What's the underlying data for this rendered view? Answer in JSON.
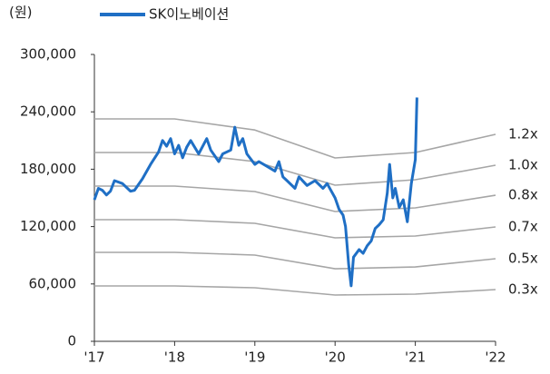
{
  "chart_data": {
    "type": "line",
    "unit_label": "(원)",
    "xlim": [
      2017,
      2022
    ],
    "xticks": [
      {
        "value": 2017,
        "label": "'17"
      },
      {
        "value": 2018,
        "label": "'18"
      },
      {
        "value": 2019,
        "label": "'19"
      },
      {
        "value": 2020,
        "label": "'20"
      },
      {
        "value": 2021,
        "label": "'21"
      },
      {
        "value": 2022,
        "label": "'22"
      }
    ],
    "ylim": [
      0,
      300000
    ],
    "yticks": [
      0,
      {
        "value": 60000,
        "label": "60,000"
      },
      {
        "value": 120000,
        "label": "120,000"
      },
      {
        "value": 180000,
        "label": "180,000"
      },
      {
        "value": 240000,
        "label": "240,000"
      },
      {
        "value": 300000,
        "label": "300,000"
      }
    ],
    "series": [
      {
        "name": "SK이노베이션",
        "color": "#1f6fc5",
        "legend": true,
        "x": [
          2017.0,
          2017.05,
          2017.1,
          2017.15,
          2017.2,
          2017.25,
          2017.35,
          2017.45,
          2017.5,
          2017.6,
          2017.7,
          2017.8,
          2017.85,
          2017.9,
          2017.95,
          2018.0,
          2018.05,
          2018.1,
          2018.15,
          2018.2,
          2018.3,
          2018.4,
          2018.45,
          2018.55,
          2018.6,
          2018.7,
          2018.75,
          2018.8,
          2018.85,
          2018.9,
          2019.0,
          2019.05,
          2019.15,
          2019.25,
          2019.3,
          2019.35,
          2019.4,
          2019.5,
          2019.55,
          2019.65,
          2019.75,
          2019.85,
          2019.9,
          2020.0,
          2020.05,
          2020.1,
          2020.13,
          2020.17,
          2020.2,
          2020.23,
          2020.3,
          2020.35,
          2020.4,
          2020.45,
          2020.5,
          2020.55,
          2020.6,
          2020.65,
          2020.68,
          2020.72,
          2020.75,
          2020.8,
          2020.85,
          2020.9,
          2020.95,
          2021.0,
          2021.02
        ],
        "values": [
          148000,
          160000,
          158000,
          153000,
          157000,
          168000,
          165000,
          157000,
          158000,
          170000,
          185000,
          198000,
          210000,
          204000,
          212000,
          196000,
          205000,
          192000,
          203000,
          210000,
          196000,
          212000,
          200000,
          188000,
          196000,
          200000,
          224000,
          205000,
          212000,
          196000,
          185000,
          188000,
          183000,
          178000,
          188000,
          172000,
          168000,
          160000,
          172000,
          163000,
          168000,
          160000,
          165000,
          150000,
          138000,
          132000,
          120000,
          80000,
          58000,
          88000,
          96000,
          92000,
          100000,
          105000,
          118000,
          122000,
          127000,
          155000,
          185000,
          150000,
          160000,
          140000,
          148000,
          125000,
          165000,
          190000,
          255000
        ]
      },
      {
        "name": "1.2x",
        "color": "#a6a6a6",
        "x": [
          2017,
          2018,
          2019,
          2020,
          2021,
          2022
        ],
        "values": [
          232600,
          232600,
          221000,
          191800,
          197500,
          216500
        ]
      },
      {
        "name": "1.0x",
        "color": "#a6a6a6",
        "x": [
          2017,
          2018,
          2019,
          2020,
          2021,
          2022
        ],
        "values": [
          197500,
          197500,
          188000,
          163300,
          169000,
          184200
        ]
      },
      {
        "name": "0.8x",
        "color": "#a6a6a6",
        "x": [
          2017,
          2018,
          2019,
          2020,
          2021,
          2022
        ],
        "values": [
          162300,
          162300,
          156600,
          135800,
          139600,
          152800
        ]
      },
      {
        "name": "0.7x",
        "color": "#a6a6a6",
        "x": [
          2017,
          2018,
          2019,
          2020,
          2021,
          2022
        ],
        "values": [
          127200,
          127200,
          123400,
          108200,
          110100,
          119600
        ]
      },
      {
        "name": "0.5x",
        "color": "#a6a6a6",
        "x": [
          2017,
          2018,
          2019,
          2020,
          2021,
          2022
        ],
        "values": [
          93000,
          93000,
          90200,
          75900,
          77800,
          86400
        ]
      },
      {
        "name": "0.3x",
        "color": "#a6a6a6",
        "x": [
          2017,
          2018,
          2019,
          2020,
          2021,
          2022
        ],
        "values": [
          57900,
          57900,
          56000,
          48400,
          49400,
          54100
        ]
      }
    ]
  }
}
